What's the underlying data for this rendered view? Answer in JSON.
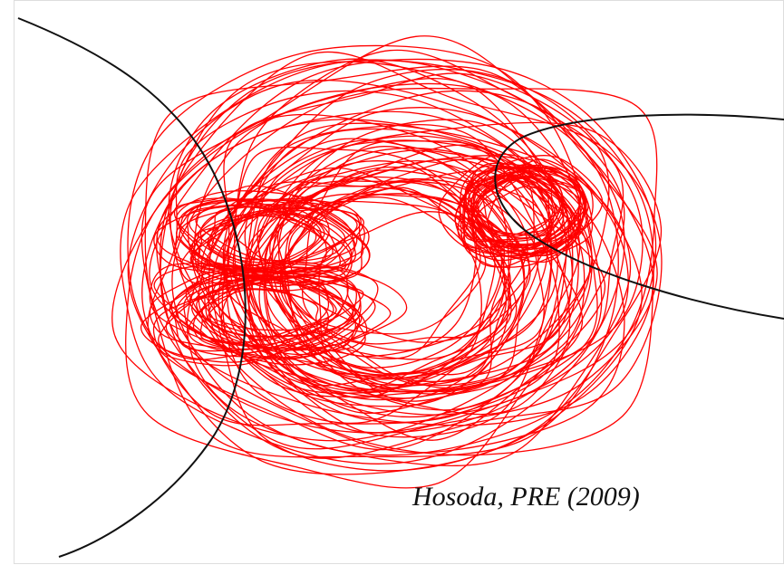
{
  "caption": "Hosoda, PRE (2009)"
}
